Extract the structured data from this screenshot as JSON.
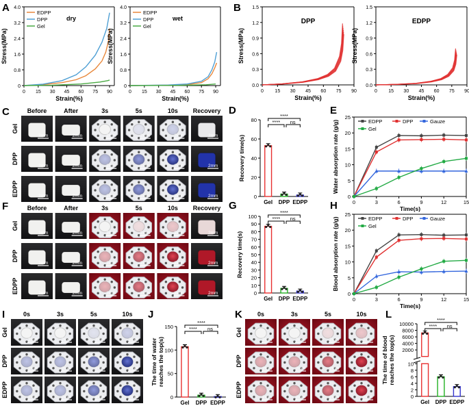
{
  "panels": {
    "A": "A",
    "B": "B",
    "C": "C",
    "D": "D",
    "E": "E",
    "F": "F",
    "G": "G",
    "H": "H",
    "I": "I",
    "J": "J",
    "K": "K",
    "L": "L"
  },
  "colors": {
    "edpp": "#e8873a",
    "dpp": "#4e9fd4",
    "gel": "#49a942",
    "red": "#e03030",
    "bar_gel": "#e83030",
    "bar_dpp": "#22b022",
    "bar_edpp": "#3333cc",
    "water": "#3344aa",
    "blood": "#a8182a",
    "photo_bg": "#1e1e20"
  },
  "stress_labels": {
    "xlabel": "Strain(%)",
    "ylabel": "Stress(MPa)"
  },
  "photo_labels": {
    "c_cols": [
      "Before",
      "After",
      "3s",
      "5s",
      "10s",
      "Recovery"
    ],
    "c_rows": [
      "Gel",
      "DPP",
      "EDPP"
    ],
    "i_cols": [
      "0s",
      "3s",
      "5s",
      "10s"
    ],
    "scale": "2mm"
  },
  "chart_data": [
    {
      "id": "A-dry",
      "type": "line",
      "annotation": "dry",
      "xlabel": "Strain(%)",
      "ylabel": "Stress(MPa)",
      "xlim": [
        0,
        95
      ],
      "ylim": [
        0,
        4.0
      ],
      "xticks": [
        "0",
        "15",
        "30",
        "45",
        "60",
        "75",
        "90"
      ],
      "yticks": [
        "0",
        "0.8",
        "1.6",
        "2.4",
        "3.2",
        "4.0"
      ],
      "legend": [
        "EDPP",
        "DPP",
        "Gel"
      ],
      "series": [
        {
          "name": "EDPP",
          "color": "#e8873a",
          "points": [
            [
              0,
              0
            ],
            [
              20,
              0.05
            ],
            [
              40,
              0.15
            ],
            [
              55,
              0.3
            ],
            [
              65,
              0.5
            ],
            [
              75,
              0.85
            ],
            [
              82,
              1.25
            ],
            [
              86,
              1.7
            ],
            [
              89,
              2.3
            ],
            [
              90,
              2.9
            ]
          ]
        },
        {
          "name": "DPP",
          "color": "#4e9fd4",
          "points": [
            [
              0,
              0
            ],
            [
              20,
              0.07
            ],
            [
              40,
              0.25
            ],
            [
              55,
              0.55
            ],
            [
              65,
              0.95
            ],
            [
              75,
              1.55
            ],
            [
              82,
              2.2
            ],
            [
              87,
              2.9
            ],
            [
              90,
              3.7
            ]
          ]
        },
        {
          "name": "Gel",
          "color": "#49a942",
          "points": [
            [
              0,
              0
            ],
            [
              30,
              0.02
            ],
            [
              60,
              0.08
            ],
            [
              80,
              0.18
            ],
            [
              88,
              0.25
            ],
            [
              90,
              0.28
            ]
          ]
        }
      ]
    },
    {
      "id": "A-wet",
      "type": "line",
      "annotation": "wet",
      "xlabel": "Strain(%)",
      "ylabel": "Stress(MPa)",
      "xlim": [
        0,
        95
      ],
      "ylim": [
        0,
        4.0
      ],
      "xticks": [
        "0",
        "15",
        "30",
        "45",
        "60",
        "75",
        "90"
      ],
      "yticks": [
        "0",
        "0.8",
        "1.6",
        "2.4",
        "3.2",
        "4.0"
      ],
      "legend": [
        "EDPP",
        "DPP",
        "Gel"
      ],
      "series": [
        {
          "name": "EDPP",
          "color": "#e8873a",
          "points": [
            [
              0,
              0
            ],
            [
              40,
              0.02
            ],
            [
              60,
              0.05
            ],
            [
              75,
              0.15
            ],
            [
              82,
              0.35
            ],
            [
              86,
              0.6
            ],
            [
              89,
              0.9
            ],
            [
              91,
              1.15
            ]
          ]
        },
        {
          "name": "DPP",
          "color": "#4e9fd4",
          "points": [
            [
              0,
              0
            ],
            [
              40,
              0.03
            ],
            [
              60,
              0.08
            ],
            [
              75,
              0.22
            ],
            [
              82,
              0.45
            ],
            [
              86,
              0.8
            ],
            [
              89,
              1.2
            ],
            [
              91,
              1.7
            ]
          ]
        },
        {
          "name": "Gel",
          "color": "#49a942",
          "points": [
            [
              0,
              0
            ],
            [
              50,
              0.01
            ],
            [
              80,
              0.04
            ],
            [
              90,
              0.08
            ]
          ]
        }
      ]
    },
    {
      "id": "B-DPP",
      "type": "line",
      "annotation": "DPP",
      "xlabel": "Strain(%)",
      "ylabel": "Stress(MPa)",
      "xlim": [
        0,
        90
      ],
      "ylim": [
        0,
        1.5
      ],
      "xticks": [
        "0",
        "15",
        "30",
        "45",
        "60",
        "75",
        "90"
      ],
      "yticks": [
        "0.0",
        "0.3",
        "0.6",
        "0.9",
        "1.2",
        "1.5"
      ],
      "series": [
        {
          "name": "DPP",
          "color": "#e03030",
          "points": [
            [
              0,
              0
            ],
            [
              20,
              0.02
            ],
            [
              40,
              0.06
            ],
            [
              55,
              0.12
            ],
            [
              65,
              0.2
            ],
            [
              72,
              0.32
            ],
            [
              77,
              0.55
            ],
            [
              79,
              0.8
            ],
            [
              80,
              1.18
            ]
          ]
        }
      ]
    },
    {
      "id": "B-EDPP",
      "type": "line",
      "annotation": "EDPP",
      "xlabel": "Strain(%)",
      "ylabel": "Stress(MPa)",
      "xlim": [
        0,
        90
      ],
      "ylim": [
        0,
        1.5
      ],
      "xticks": [
        "0",
        "15",
        "30",
        "45",
        "60",
        "75",
        "90"
      ],
      "yticks": [
        "0.0",
        "0.3",
        "0.6",
        "0.9",
        "1.2",
        "1.5"
      ],
      "series": [
        {
          "name": "EDPP",
          "color": "#e03030",
          "points": [
            [
              0,
              0
            ],
            [
              20,
              0.01
            ],
            [
              40,
              0.03
            ],
            [
              55,
              0.07
            ],
            [
              65,
              0.12
            ],
            [
              72,
              0.2
            ],
            [
              77,
              0.33
            ],
            [
              79,
              0.48
            ],
            [
              80,
              0.7
            ]
          ]
        }
      ]
    },
    {
      "id": "D",
      "type": "bar",
      "ylabel": "Recovery time(s)",
      "categories": [
        "Gel",
        "DPP",
        "EDPP"
      ],
      "values": [
        53,
        2.5,
        1.5
      ],
      "ylim": [
        0,
        80
      ],
      "yticks": [
        "0",
        "20",
        "40",
        "60",
        "80"
      ],
      "significance": [
        "****",
        "****",
        "ns"
      ]
    },
    {
      "id": "E",
      "type": "line",
      "xlabel": "Time(s)",
      "ylabel": "Water absorption rate (g/g)",
      "x": [
        0,
        3,
        6,
        9,
        12,
        15
      ],
      "xlim": [
        0,
        15
      ],
      "ylim": [
        0,
        25
      ],
      "xticks": [
        "0",
        "3",
        "6",
        "9",
        "12",
        "15"
      ],
      "yticks": [
        "0",
        "5",
        "10",
        "15",
        "20",
        "25"
      ],
      "legend": [
        "EDPP",
        "DPP",
        "Gauze",
        "Gel"
      ],
      "series": [
        {
          "name": "EDPP",
          "color": "#444444",
          "values": [
            0,
            15.5,
            19.2,
            19.1,
            19.3,
            19.2
          ]
        },
        {
          "name": "DPP",
          "color": "#e03030",
          "values": [
            0,
            14.0,
            17.8,
            17.9,
            18.0,
            17.8
          ]
        },
        {
          "name": "Gauze",
          "color": "#3366dd",
          "values": [
            0,
            8.0,
            8.0,
            8.0,
            8.0,
            8.0
          ]
        },
        {
          "name": "Gel",
          "color": "#22aa44",
          "values": [
            0,
            2.5,
            6.0,
            8.8,
            11.0,
            12.0
          ]
        }
      ]
    },
    {
      "id": "G",
      "type": "bar",
      "ylabel": "Recovery time(s)",
      "categories": [
        "Gel",
        "DPP",
        "EDPP"
      ],
      "values": [
        87,
        6,
        2.5
      ],
      "ylim": [
        0,
        100
      ],
      "yticks": [
        "0",
        "10",
        "20",
        "30",
        "40",
        "50",
        "60",
        "70",
        "80",
        "90",
        "100"
      ],
      "significance": [
        "****",
        "****",
        "ns"
      ]
    },
    {
      "id": "H",
      "type": "line",
      "xlabel": "Time(s)",
      "ylabel": "Blood absorption rate (g/g)",
      "x": [
        0,
        3,
        6,
        9,
        12,
        15
      ],
      "xlim": [
        0,
        15
      ],
      "ylim": [
        0,
        25
      ],
      "xticks": [
        "0",
        "3",
        "6",
        "9",
        "12",
        "15"
      ],
      "yticks": [
        "0",
        "5",
        "10",
        "15",
        "20",
        "25"
      ],
      "legend": [
        "EDPP",
        "DPP",
        "Gauze",
        "Gel"
      ],
      "series": [
        {
          "name": "EDPP",
          "color": "#444444",
          "values": [
            0,
            13.5,
            18.5,
            18.6,
            18.4,
            18.5
          ]
        },
        {
          "name": "DPP",
          "color": "#e03030",
          "values": [
            0,
            11.5,
            16.8,
            17.3,
            17.4,
            17.2
          ]
        },
        {
          "name": "Gauze",
          "color": "#3366dd",
          "values": [
            0,
            5.5,
            6.9,
            6.8,
            7.0,
            7.1
          ]
        },
        {
          "name": "Gel",
          "color": "#22aa44",
          "values": [
            0,
            2.0,
            5.2,
            7.8,
            10.2,
            10.5
          ]
        }
      ]
    },
    {
      "id": "J",
      "type": "bar",
      "ylabel": "The time of water reaches the top(s)",
      "categories": [
        "Gel",
        "DPP",
        "EDPP"
      ],
      "values": [
        107,
        4,
        1
      ],
      "ylim": [
        0,
        150
      ],
      "yticks": [
        "0",
        "50",
        "100",
        "150"
      ],
      "significance": [
        "****",
        "****",
        "ns"
      ]
    },
    {
      "id": "L",
      "type": "bar",
      "ylabel": "The time of blood reaches the top(s)",
      "categories": [
        "Gel",
        "DPP",
        "EDPP"
      ],
      "values": [
        7200,
        6,
        3
      ],
      "axis_break": [
        10,
        0
      ],
      "yticks_lower": [
        "0",
        "2",
        "4",
        "6",
        "8",
        "10"
      ],
      "yticks_upper": [
        "0",
        "2000",
        "4000",
        "6000",
        "8000",
        "10000"
      ],
      "significance": [
        "****",
        "****",
        "ns"
      ]
    }
  ]
}
